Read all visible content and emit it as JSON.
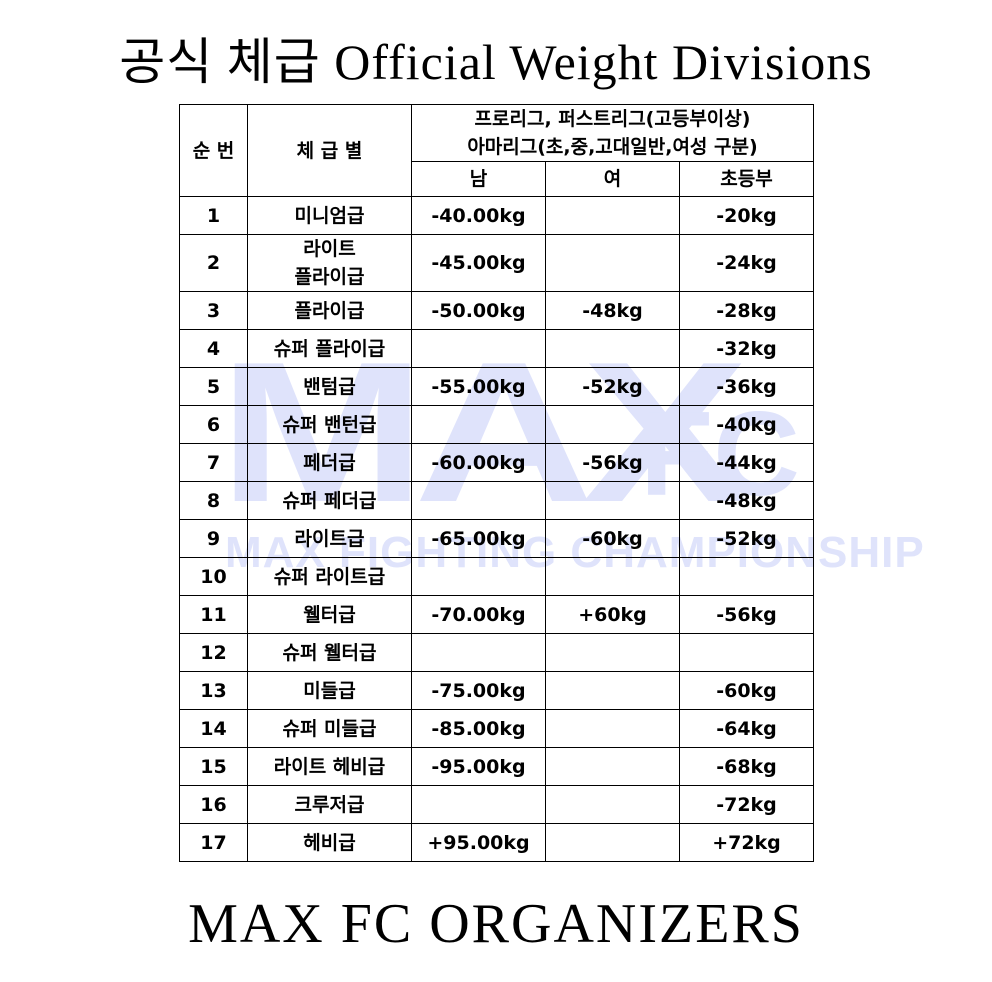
{
  "header": {
    "title": "공식 체급 Official Weight Divisions"
  },
  "watermark": {
    "logo_left": "MAX",
    "logo_right": "FC",
    "tagline": "MAX FIGHTING CHAMPIONSHIP"
  },
  "table": {
    "columns": {
      "number": "순 번",
      "division": "체 급 별",
      "group_line1": "프로리그, 퍼스트리그(고등부이상)",
      "group_line2": "아마리그(초,중,고대일반,여성 구분)",
      "male": "남",
      "female": "여",
      "elementary": "초등부"
    },
    "rows": [
      [
        "1",
        "미니엄급",
        "-40.00kg",
        null,
        "-20kg"
      ],
      [
        "2",
        "라이트\n플라이급",
        "-45.00kg",
        null,
        "-24kg"
      ],
      [
        "3",
        "플라이급",
        "-50.00kg",
        "-48kg",
        "-28kg"
      ],
      [
        "4",
        "슈퍼 플라이급",
        null,
        null,
        "-32kg"
      ],
      [
        "5",
        "밴텀급",
        "-55.00kg",
        "-52kg",
        "-36kg"
      ],
      [
        "6",
        "슈퍼 밴턴급",
        null,
        null,
        "-40kg"
      ],
      [
        "7",
        "페더급",
        "-60.00kg",
        "-56kg",
        "-44kg"
      ],
      [
        "8",
        "슈퍼 페더급",
        null,
        null,
        "-48kg"
      ],
      [
        "9",
        "라이트급",
        "-65.00kg",
        "-60kg",
        "-52kg"
      ],
      [
        "10",
        "슈퍼 라이트급",
        null,
        null,
        null
      ],
      [
        "11",
        "웰터급",
        "-70.00kg",
        "+60kg",
        "-56kg"
      ],
      [
        "12",
        "슈퍼 웰터급",
        null,
        null,
        null
      ],
      [
        "13",
        "미들급",
        "-75.00kg",
        null,
        "-60kg"
      ],
      [
        "14",
        "슈퍼 미들급",
        "-85.00kg",
        null,
        "-64kg"
      ],
      [
        "15",
        "라이트 헤비급",
        "-95.00kg",
        null,
        "-68kg"
      ],
      [
        "16",
        "크루저급",
        null,
        null,
        "-72kg"
      ],
      [
        "17",
        "헤비급",
        "+95.00kg",
        null,
        "+72kg"
      ]
    ]
  },
  "footer": {
    "text": "MAX FC ORGANIZERS"
  }
}
